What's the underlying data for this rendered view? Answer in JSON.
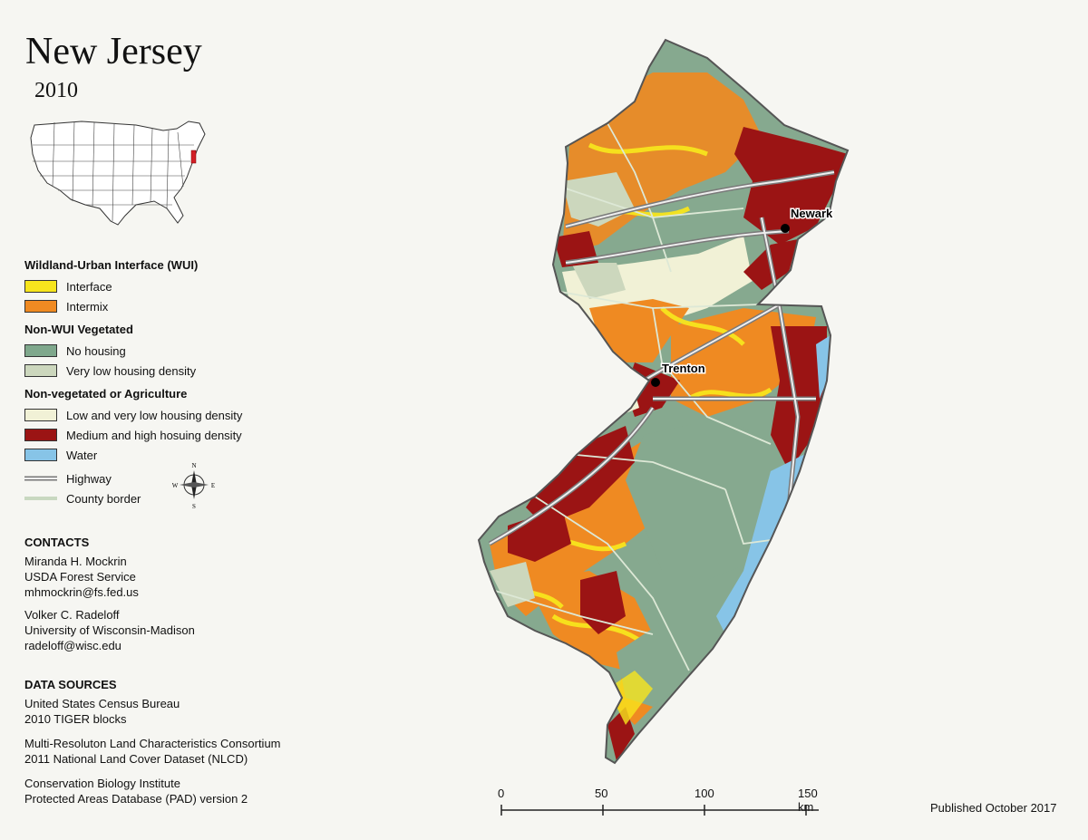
{
  "title": "New Jersey",
  "year": "2010",
  "legend": {
    "wui_heading": "Wildland-Urban Interface (WUI)",
    "wui_items": [
      {
        "label": "Interface",
        "color": "#f7e51d"
      },
      {
        "label": "Intermix",
        "color": "#ef8a22"
      }
    ],
    "veg_heading": "Non-WUI Vegetated",
    "veg_items": [
      {
        "label": "No housing",
        "color": "#7fa88c"
      },
      {
        "label": "Very low housing density",
        "color": "#ccd7bd"
      }
    ],
    "nonveg_heading": "Non-vegetated or Agriculture",
    "nonveg_items": [
      {
        "label": "Low and very low housing density",
        "color": "#f1f1d6"
      },
      {
        "label": "Medium and high hosuing density",
        "color": "#9b1414"
      },
      {
        "label": "Water",
        "color": "#87c4e7"
      }
    ],
    "line_items": [
      {
        "label": "Highway"
      },
      {
        "label": "County border"
      }
    ]
  },
  "compass": {
    "n": "N",
    "s": "S",
    "e": "E",
    "w": "W"
  },
  "contacts": {
    "heading": "CONTACTS",
    "person1": {
      "name": "Miranda H. Mockrin",
      "org": "USDA Forest Service",
      "email": "mhmockrin@fs.fed.us"
    },
    "person2": {
      "name": "Volker C. Radeloff",
      "org": "University of Wisconsin-Madison",
      "email": "radeloff@wisc.edu"
    }
  },
  "data_sources": {
    "heading": "DATA SOURCES",
    "items": [
      {
        "line1": "United States Census Bureau",
        "line2": "2010 TIGER blocks"
      },
      {
        "line1": "Multi-Resoluton Land Characteristics Consortium",
        "line2": "2011 National Land Cover Dataset (NLCD)"
      },
      {
        "line1": "Conservation Biology Institute",
        "line2": "Protected Areas Database (PAD) version 2"
      }
    ]
  },
  "cities": {
    "newark": "Newark",
    "trenton": "Trenton"
  },
  "scale": {
    "labels": [
      "0",
      "50",
      "100",
      "150 km"
    ]
  },
  "published": "Published October 2017"
}
